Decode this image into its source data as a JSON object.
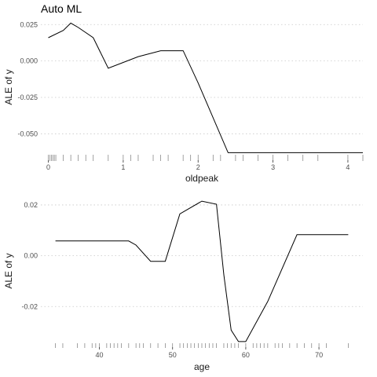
{
  "title": "Auto ML",
  "chart_data": [
    {
      "type": "line",
      "xlabel": "oldpeak",
      "ylabel": "ALE of y",
      "xlim": [
        -0.1,
        4.2
      ],
      "ylim": [
        -0.066,
        0.03
      ],
      "xticks": [
        0,
        1,
        2,
        3,
        4
      ],
      "xtick_labels": [
        "0",
        "1",
        "2",
        "3",
        "4"
      ],
      "yticks": [
        0.025,
        0.0,
        -0.025,
        -0.05
      ],
      "ytick_labels": [
        "0.025",
        "0.000",
        "-0.025",
        "-0.050"
      ],
      "grid": "horizontal",
      "series": [
        {
          "x": [
            0.0,
            0.2,
            0.3,
            0.4,
            0.6,
            0.8,
            1.0,
            1.2,
            1.5,
            1.8,
            2.0,
            2.4,
            2.6,
            2.8,
            3.0,
            3.4,
            3.6,
            4.2
          ],
          "y": [
            0.016,
            0.021,
            0.026,
            0.023,
            0.016,
            -0.005,
            -0.001,
            0.003,
            0.007,
            0.007,
            -0.015,
            -0.063,
            -0.063,
            -0.063,
            -0.063,
            -0.063,
            -0.063,
            -0.063
          ]
        }
      ],
      "rug": [
        0,
        0.02,
        0.04,
        0.06,
        0.08,
        0.1,
        0.2,
        0.3,
        0.4,
        0.5,
        0.6,
        0.8,
        1.0,
        1.1,
        1.2,
        1.4,
        1.5,
        1.6,
        1.8,
        1.9,
        2.0,
        2.2,
        2.3,
        2.5,
        2.6,
        2.8,
        3.0,
        3.2,
        3.4,
        3.6,
        4.0,
        4.2
      ]
    },
    {
      "type": "line",
      "xlabel": "age",
      "ylabel": "ALE of y",
      "xlim": [
        32,
        76
      ],
      "ylim": [
        -0.036,
        0.024
      ],
      "xticks": [
        40,
        50,
        60,
        70
      ],
      "xtick_labels": [
        "40",
        "50",
        "60",
        "70"
      ],
      "yticks": [
        0.02,
        0.0,
        -0.02
      ],
      "ytick_labels": [
        "0.02",
        "0.00",
        "-0.02"
      ],
      "grid": "horizontal",
      "series": [
        {
          "x": [
            34,
            44,
            45,
            47,
            49,
            51,
            54,
            56,
            57,
            58,
            59,
            60,
            63,
            67,
            71,
            74
          ],
          "y": [
            0.0058,
            0.0058,
            0.0042,
            -0.0022,
            -0.0022,
            0.0165,
            0.0215,
            0.0203,
            -0.0075,
            -0.0293,
            -0.0338,
            -0.0338,
            -0.018,
            0.0083,
            0.0083,
            0.0083
          ]
        }
      ],
      "rug": [
        34,
        35,
        37,
        38,
        39,
        39.5,
        40,
        41,
        41.5,
        42,
        42.5,
        43,
        44,
        45,
        45.5,
        46,
        47,
        48,
        49,
        50,
        51,
        51.5,
        52,
        52.5,
        53,
        53.5,
        54,
        54.5,
        55,
        55.5,
        56,
        57,
        57.5,
        58,
        58.5,
        59,
        60,
        61,
        61.5,
        62,
        62.5,
        63,
        64,
        64.5,
        65,
        66,
        67,
        68,
        69,
        70,
        71,
        74
      ]
    }
  ]
}
